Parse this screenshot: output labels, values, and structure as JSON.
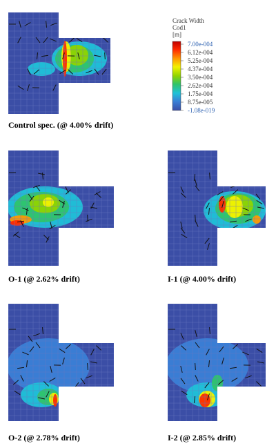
{
  "legend": {
    "title": [
      "Crack Width",
      "Cod1",
      "[m]"
    ],
    "labels": [
      "7.00e-004",
      "6.12e-004",
      "5.25e-004",
      "4.37e-004",
      "3.50e-004",
      "2.62e-004",
      "1.75e-004",
      "8.75e-005",
      "-1.08e-019"
    ]
  },
  "panels": [
    {
      "caption": "Control spec. (@ 4.00% drift)"
    },
    {
      "caption": "O-1 (@ 2.62% drift)"
    },
    {
      "caption": "I-1 (@ 4.00% drift)"
    },
    {
      "caption": "O-2 (@ 2.78% drift)"
    },
    {
      "caption": "I-2 (@ 2.85% drift)"
    }
  ]
}
